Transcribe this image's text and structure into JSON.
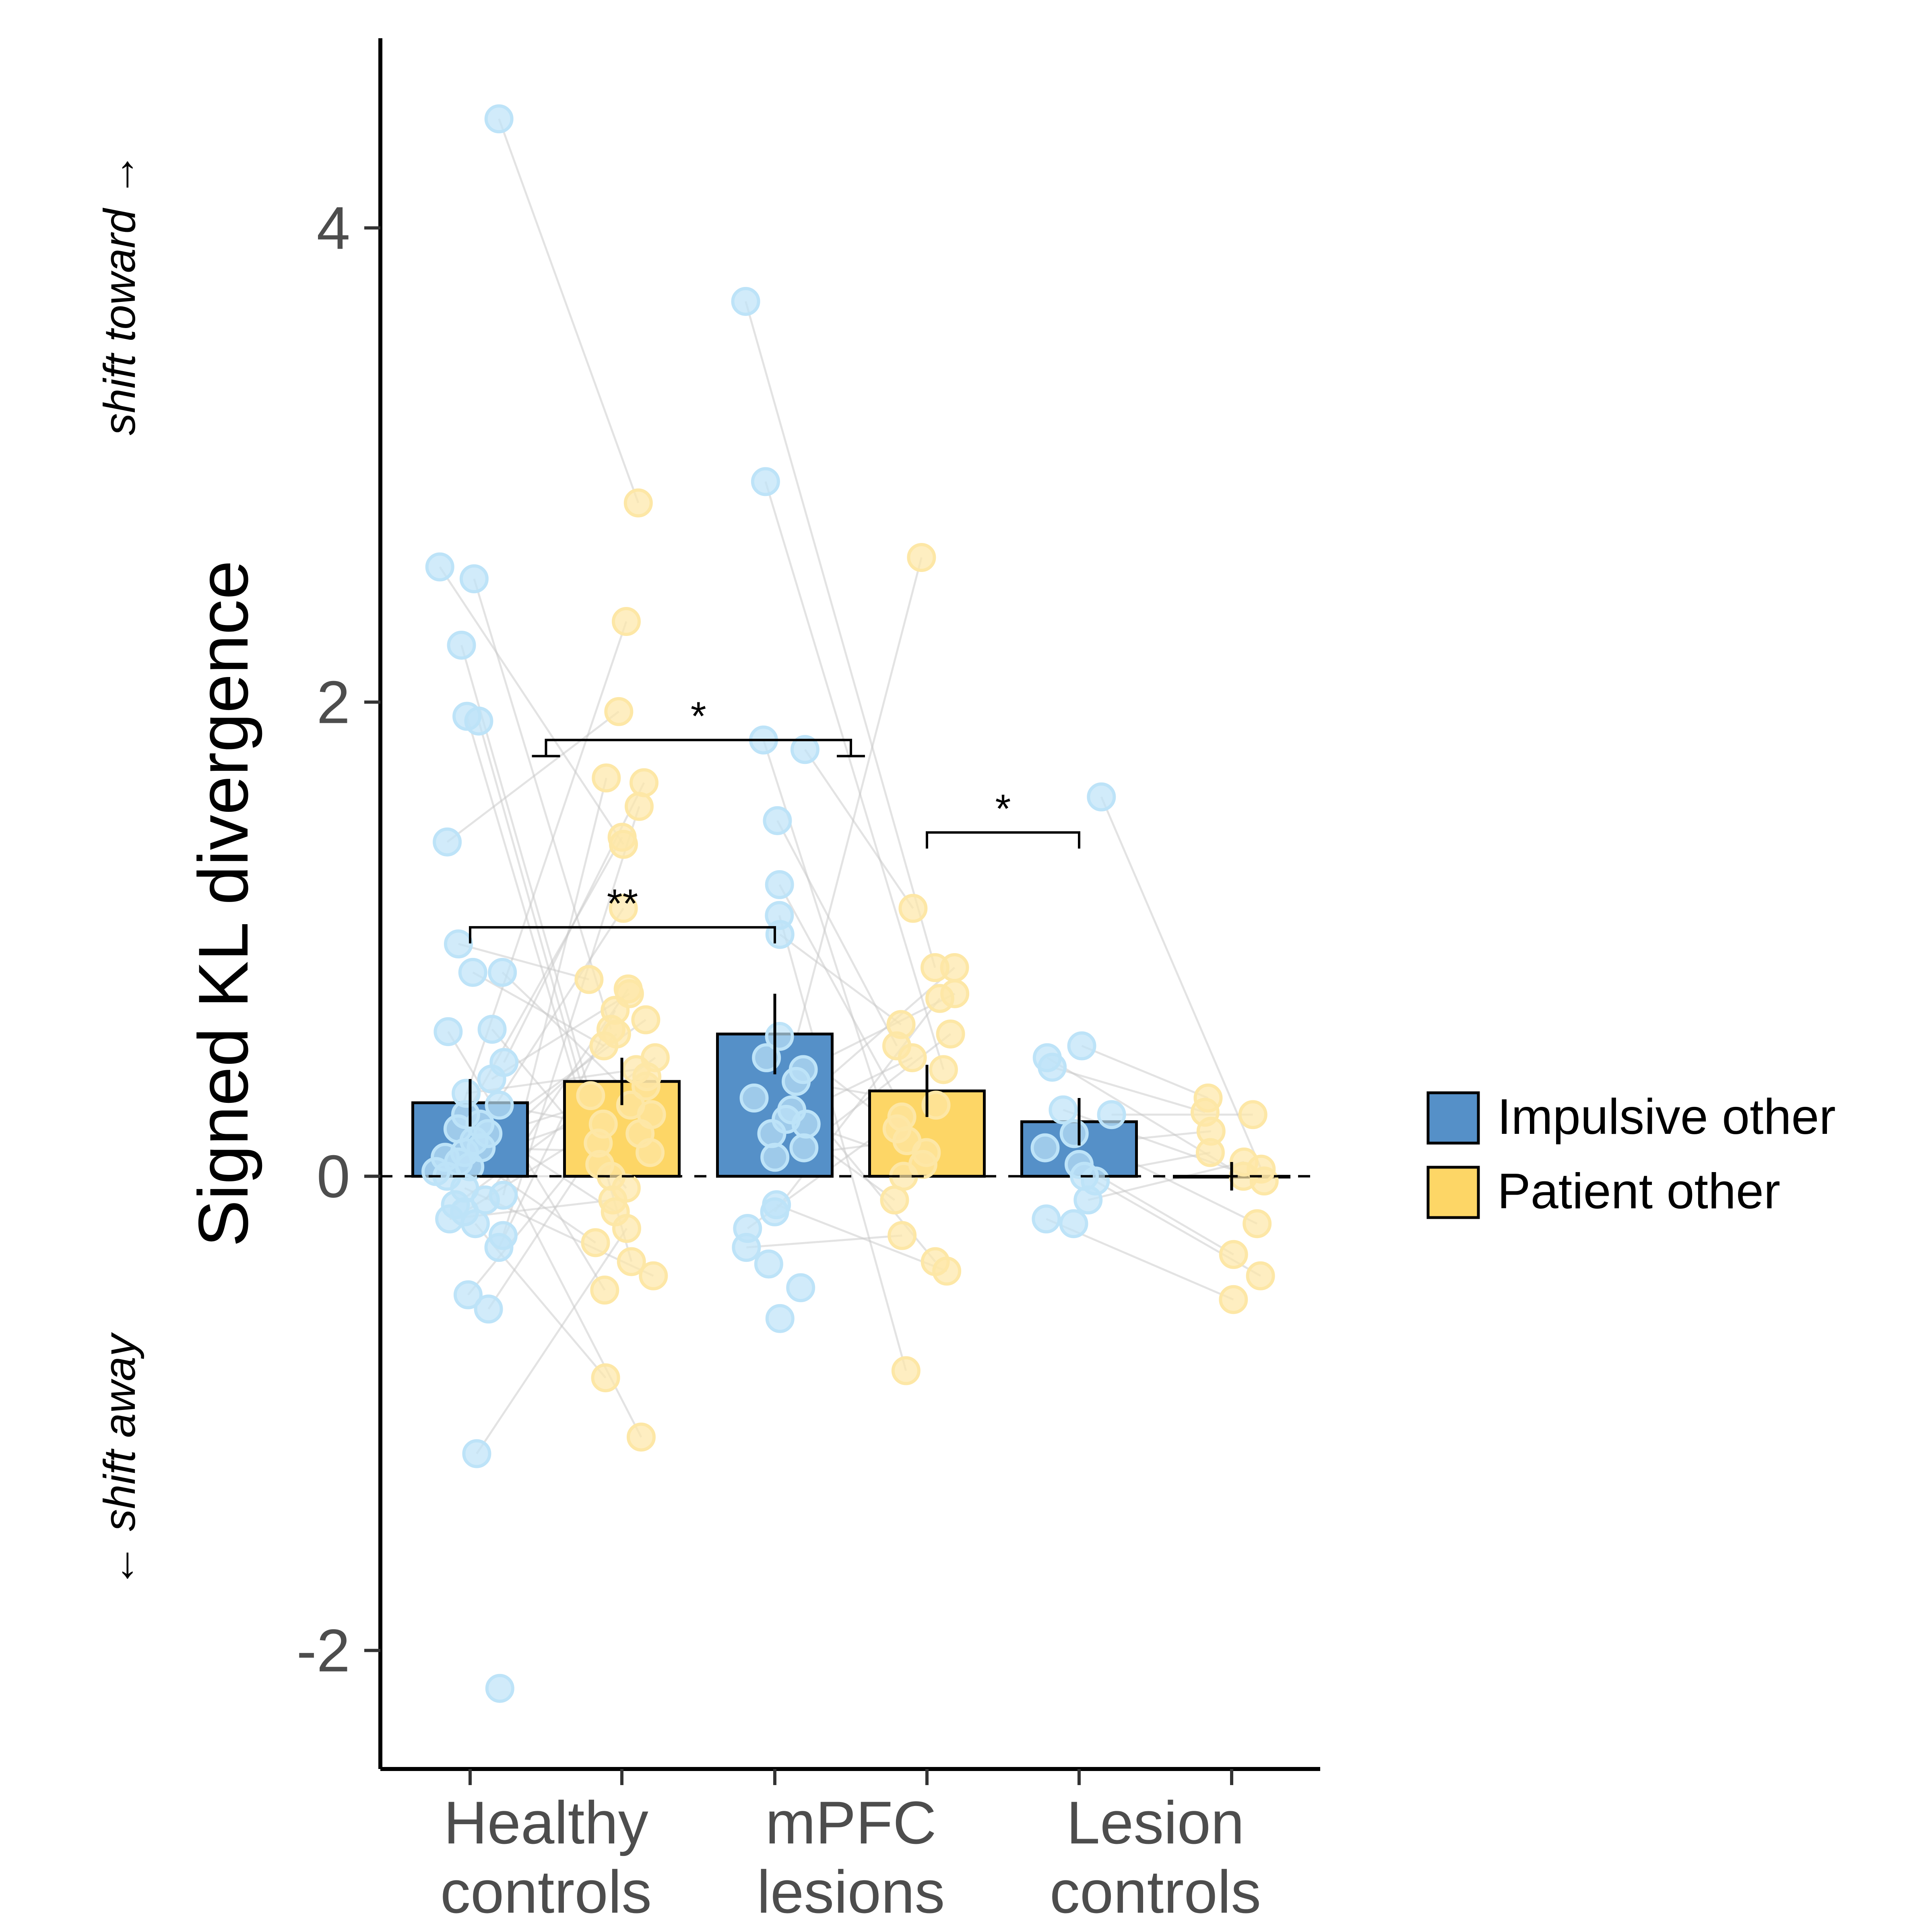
{
  "chart_data": {
    "type": "bar",
    "ylabel": "Signed KL divergence",
    "annotations": {
      "above": "shift toward →",
      "below": "← shift away"
    },
    "ylim": [
      -2.5,
      4.8
    ],
    "yticks": [
      -2,
      0,
      2,
      4
    ],
    "ytick_labels": [
      "-2",
      "0",
      "2",
      "4"
    ],
    "grid": false,
    "reference_line": 0,
    "legend_position": "right",
    "groups": [
      {
        "label_lines": [
          "Healthy",
          "controls"
        ]
      },
      {
        "label_lines": [
          "mPFC",
          "lesions"
        ]
      },
      {
        "label_lines": [
          "Lesion",
          "controls"
        ]
      }
    ],
    "series": [
      {
        "name": "Impulsive other",
        "color": "#5590C8",
        "point_color": "#BDE3F8",
        "values": [
          0.31,
          0.6,
          0.23
        ],
        "errors": [
          0.1,
          0.17,
          0.1
        ],
        "points": [
          [
            4.46,
            2.57,
            2.52,
            2.24,
            1.94,
            1.92,
            1.41,
            0.98,
            0.86,
            0.86,
            0.62,
            0.61,
            0.48,
            0.41,
            0.35,
            0.3,
            0.26,
            0.22,
            0.2,
            0.18,
            0.15,
            0.12,
            0.1,
            0.08,
            0.06,
            0.04,
            0.02,
            0.0,
            -0.05,
            -0.08,
            -0.1,
            -0.12,
            -0.15,
            -0.18,
            -0.2,
            -0.25,
            -0.3,
            -0.5,
            -0.56,
            -1.17,
            -2.16
          ],
          [
            3.69,
            2.93,
            1.84,
            1.8,
            1.5,
            1.23,
            1.1,
            1.02,
            0.59,
            0.5,
            0.45,
            0.4,
            0.33,
            0.28,
            0.24,
            0.22,
            0.18,
            0.12,
            0.08,
            -0.12,
            -0.15,
            -0.22,
            -0.3,
            -0.37,
            -0.47,
            -0.6
          ],
          [
            1.6,
            0.55,
            0.5,
            0.46,
            0.28,
            0.26,
            0.18,
            0.12,
            0.05,
            0.0,
            -0.02,
            -0.1,
            -0.18,
            -0.2
          ]
        ]
      },
      {
        "name": "Patient other",
        "color": "#FDD666",
        "point_color": "#FDE7A6",
        "values": [
          0.4,
          0.36,
          0.0
        ],
        "errors": [
          0.1,
          0.11,
          0.06
        ],
        "points": [
          [
            2.84,
            2.34,
            1.96,
            1.68,
            1.66,
            1.56,
            1.43,
            1.4,
            1.13,
            0.83,
            0.79,
            0.77,
            0.7,
            0.66,
            0.62,
            0.6,
            0.55,
            0.5,
            0.45,
            0.42,
            0.38,
            0.34,
            0.3,
            0.26,
            0.22,
            0.18,
            0.14,
            0.1,
            0.05,
            0.0,
            -0.05,
            -0.1,
            -0.15,
            -0.22,
            -0.28,
            -0.36,
            -0.42,
            -0.48,
            -0.85,
            -1.1
          ],
          [
            2.61,
            1.13,
            0.88,
            0.88,
            0.77,
            0.75,
            0.64,
            0.6,
            0.55,
            0.5,
            0.45,
            0.3,
            0.25,
            0.2,
            0.15,
            0.1,
            0.05,
            0.0,
            -0.1,
            -0.25,
            -0.36,
            -0.4,
            -0.82
          ],
          [
            0.33,
            0.27,
            0.26,
            0.19,
            0.1,
            0.06,
            0.03,
            0.0,
            -0.02,
            -0.2,
            -0.33,
            -0.42,
            -0.52
          ]
        ]
      }
    ],
    "significance": [
      {
        "label": "**",
        "from_bar": [
          0,
          0
        ],
        "to_bar": [
          1,
          0
        ],
        "y": 1.05
      },
      {
        "label": "*",
        "from_group": 0,
        "to_group": 1,
        "y": 1.84
      },
      {
        "label": "*",
        "from_bar": [
          1,
          1
        ],
        "to_bar": [
          2,
          0
        ],
        "y": 1.45
      }
    ]
  }
}
